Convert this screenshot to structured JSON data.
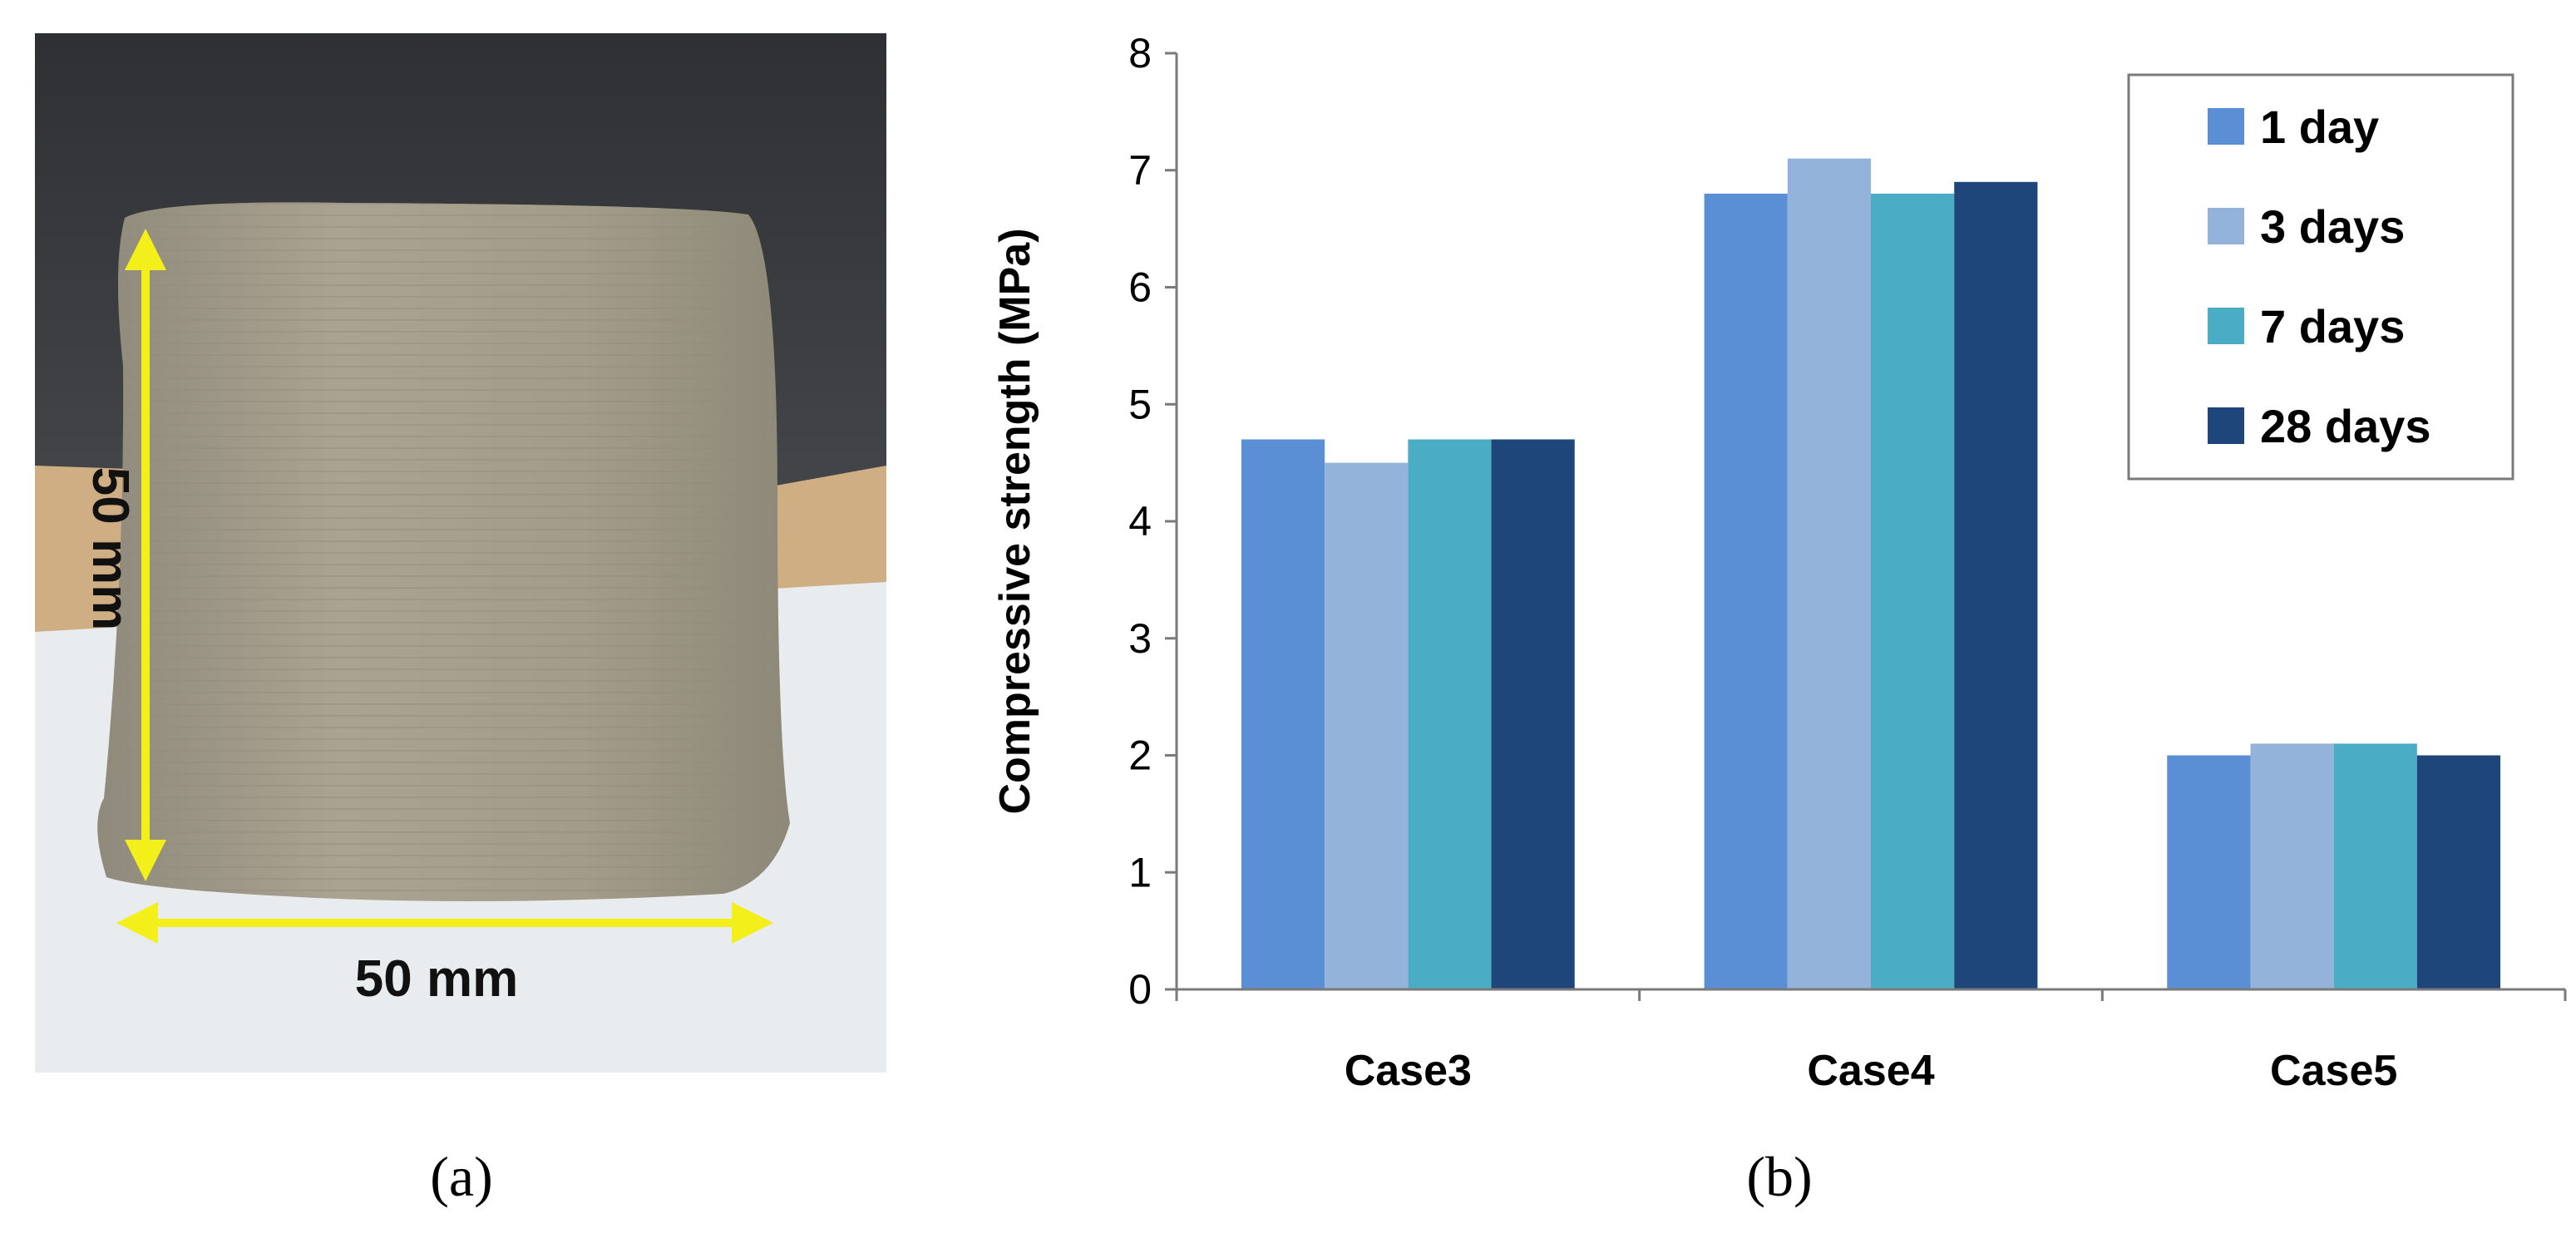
{
  "panel_a": {
    "caption": "(a)",
    "height_label": "50 mm",
    "width_label": "50 mm",
    "colors": {
      "arrow": "#f2ef1a",
      "background_top": "#3b3b3d",
      "table": "#cfae84",
      "cloth": "#e9ecef",
      "cube": "#a49d8b"
    }
  },
  "panel_b": {
    "caption": "(b)"
  },
  "chart_data": {
    "type": "bar",
    "title": "",
    "xlabel": "",
    "ylabel": "Compressive strength (MPa)",
    "ylim": [
      0,
      8
    ],
    "yticks": [
      "0",
      "1",
      "2",
      "3",
      "4",
      "5",
      "6",
      "7",
      "8"
    ],
    "grid": false,
    "legend_position": "top-right",
    "categories": [
      "Case3",
      "Case4",
      "Case5"
    ],
    "series": [
      {
        "name": "1 day",
        "color": "#5a8fd6",
        "values": [
          4.7,
          6.8,
          2.0
        ]
      },
      {
        "name": "3 days",
        "color": "#93b3db",
        "values": [
          4.5,
          7.1,
          2.1
        ]
      },
      {
        "name": "7 days",
        "color": "#4aadc5",
        "values": [
          4.7,
          6.8,
          2.1
        ]
      },
      {
        "name": "28 days",
        "color": "#1f467a",
        "values": [
          4.7,
          6.9,
          2.0
        ]
      }
    ]
  }
}
